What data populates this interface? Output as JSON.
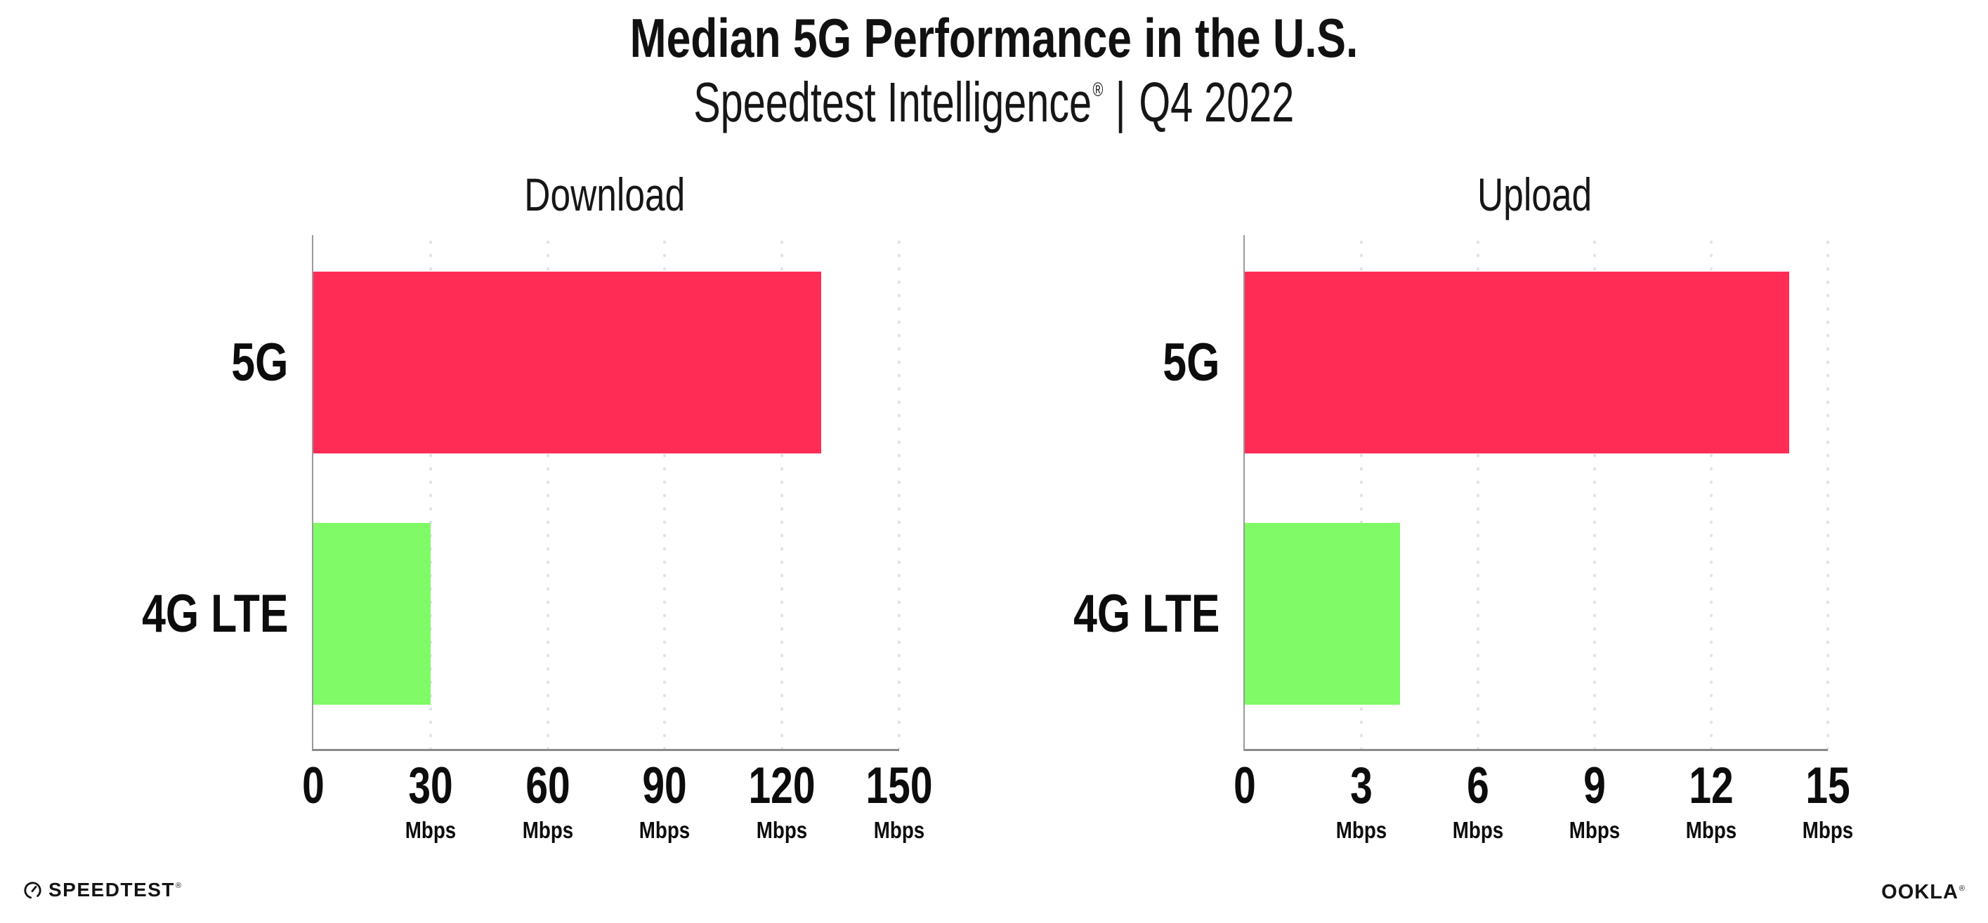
{
  "page": {
    "background": "#ffffff"
  },
  "header": {
    "title": "Median 5G Performance in the U.S.",
    "subtitle": {
      "brand": "Speedtest Intelligence",
      "registered_mark": "®",
      "separator": "|",
      "period": "Q4 2022"
    }
  },
  "colors": {
    "bar_5g": "#FF2D55",
    "bar_4g_lte": "#80FA66",
    "y_axis": "#9a9a9a",
    "x_axis": "#8a8a8a",
    "gridline": "#e1e1eb",
    "text": "#111111"
  },
  "chart_data": [
    {
      "type": "bar",
      "orientation": "horizontal",
      "title": "Download",
      "categories": [
        "5G",
        "4G LTE"
      ],
      "values": [
        130,
        30
      ],
      "unit": "Mbps",
      "xlim": [
        0,
        150
      ],
      "xticks": [
        0,
        30,
        60,
        90,
        120,
        150
      ],
      "bar_colors": [
        "#FF2D55",
        "#80FA66"
      ],
      "grid": "dotted-vertical",
      "legend": "none"
    },
    {
      "type": "bar",
      "orientation": "horizontal",
      "title": "Upload",
      "categories": [
        "5G",
        "4G LTE"
      ],
      "values": [
        14,
        4
      ],
      "unit": "Mbps",
      "xlim": [
        0,
        15
      ],
      "xticks": [
        0,
        3,
        6,
        9,
        12,
        15
      ],
      "bar_colors": [
        "#FF2D55",
        "#80FA66"
      ],
      "grid": "dotted-vertical",
      "legend": "none"
    }
  ],
  "footer": {
    "speedtest": {
      "label": "SPEEDTEST",
      "registered_mark": "®",
      "icon": "speedtest-gauge-icon"
    },
    "ookla": {
      "label": "OOKLA",
      "registered_mark": "®"
    }
  }
}
